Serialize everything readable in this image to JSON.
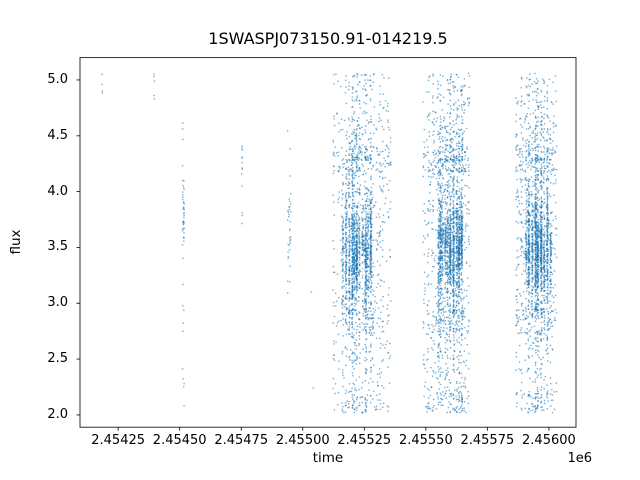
{
  "chart_data": {
    "type": "scatter",
    "title": "1SWASPJ073150.91-014219.5",
    "xlabel": "time",
    "ylabel": "flux",
    "offset_text": "1e6",
    "xlim": [
      2454095,
      2456110
    ],
    "ylim": [
      1.89,
      5.2
    ],
    "xticks": [
      {
        "value": 2454250,
        "label": "2.45425"
      },
      {
        "value": 2454500,
        "label": "2.45450"
      },
      {
        "value": 2454750,
        "label": "2.45475"
      },
      {
        "value": 2455000,
        "label": "2.45500"
      },
      {
        "value": 2455250,
        "label": "2.45525"
      },
      {
        "value": 2455500,
        "label": "2.45550"
      },
      {
        "value": 2455750,
        "label": "2.45575"
      },
      {
        "value": 2456000,
        "label": "2.45600"
      }
    ],
    "yticks": [
      {
        "value": 2.0,
        "label": "2.0"
      },
      {
        "value": 2.5,
        "label": "2.5"
      },
      {
        "value": 3.0,
        "label": "3.0"
      },
      {
        "value": 3.5,
        "label": "3.5"
      },
      {
        "value": 4.0,
        "label": "4.0"
      },
      {
        "value": 4.5,
        "label": "4.5"
      },
      {
        "value": 5.0,
        "label": "5.0"
      }
    ],
    "style": {
      "marker_color": "#1f77b4",
      "marker_alpha": 0.6,
      "marker_size": 1.4,
      "axes_color": "#1a1a1a",
      "background": "#ffffff",
      "tick_length": 3.5
    },
    "grid": false,
    "legend": null,
    "points_explicit": [
      [
        2454185,
        5.05
      ],
      [
        2454185,
        4.96
      ],
      [
        2454186,
        4.9
      ],
      [
        2454186,
        4.88
      ],
      [
        2454396,
        5.05
      ],
      [
        2454396,
        5.03
      ],
      [
        2454397,
        4.99
      ],
      [
        2454396,
        4.86
      ],
      [
        2454397,
        4.83
      ],
      [
        2455035,
        3.1
      ],
      [
        2455043,
        2.24
      ]
    ],
    "sparse_columns": [
      {
        "t": 2454515,
        "t_spread": 7,
        "n": 52,
        "main_frac": 0.55,
        "flux_main": [
          3.55,
          4.1
        ],
        "flux_range": [
          2.05,
          4.65
        ],
        "seed": 11
      },
      {
        "t": 2454753,
        "t_spread": 4,
        "n": 13,
        "main_frac": 0.7,
        "flux_main": [
          4.15,
          4.62
        ],
        "flux_range": [
          3.65,
          4.62
        ],
        "seed": 12
      },
      {
        "t": 2454945,
        "t_spread": 14,
        "n": 34,
        "main_frac": 0.72,
        "flux_main": [
          3.4,
          4.05
        ],
        "flux_range": [
          3.05,
          4.72
        ],
        "seed": 13
      }
    ],
    "clusters": [
      {
        "t_range": [
          2455123,
          2455358
        ],
        "core_t_range": [
          2455151,
          2455285
        ],
        "n": 2300,
        "seed": 1
      },
      {
        "t_range": [
          2455488,
          2455679
        ],
        "core_t_range": [
          2455545,
          2455652
        ],
        "n": 2500,
        "seed": 2
      },
      {
        "t_range": [
          2455866,
          2456032
        ],
        "core_t_range": [
          2455890,
          2456016
        ],
        "n": 2300,
        "seed": 3
      }
    ],
    "flux_profile": {
      "core_mu_range": [
        3.36,
        3.62
      ],
      "core_sigma_range": [
        0.14,
        0.36
      ],
      "mid_range": [
        2.95,
        4.28
      ],
      "upper_tail": [
        4.28,
        5.06
      ],
      "lower_tail": [
        2.02,
        2.95
      ],
      "weights": {
        "core": 0.62,
        "mid": 0.18,
        "upper": 0.095,
        "lower": 0.105
      }
    }
  }
}
